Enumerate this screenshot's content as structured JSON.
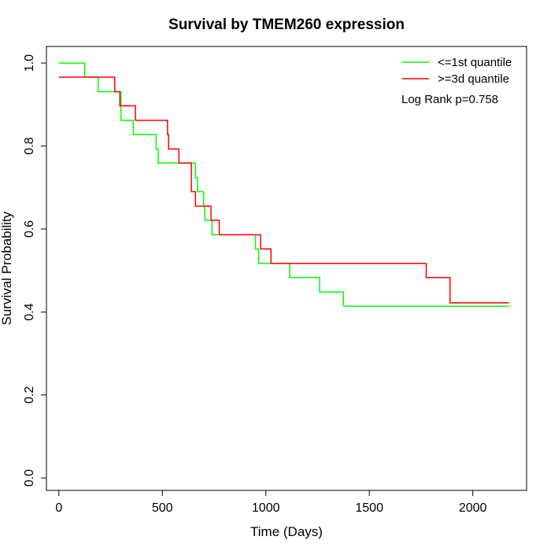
{
  "chart_data": {
    "type": "line",
    "title": "Survival by TMEM260 expression",
    "xlabel": "Time (Days)",
    "ylabel": "Survival Probability",
    "xlim": [
      -60,
      2260
    ],
    "ylim": [
      -0.03,
      1.04
    ],
    "x_ticks": [
      0,
      500,
      1000,
      1500,
      2000
    ],
    "y_ticks": [
      0.0,
      0.2,
      0.4,
      0.6,
      0.8,
      1.0
    ],
    "x_tick_labels": [
      "0",
      "500",
      "1000",
      "1500",
      "2000"
    ],
    "y_tick_labels": [
      "0.0",
      "0.2",
      "0.4",
      "0.6",
      "0.8",
      "1.0"
    ],
    "grid": false,
    "legend_position": "top-right",
    "annotation": "Log Rank p=0.758",
    "series": [
      {
        "name": "<=1st quantile",
        "color": "#00ff00",
        "steps": [
          [
            0,
            1.0
          ],
          [
            125,
            0.966
          ],
          [
            190,
            0.931
          ],
          [
            300,
            0.862
          ],
          [
            360,
            0.828
          ],
          [
            470,
            0.793
          ],
          [
            480,
            0.759
          ],
          [
            660,
            0.724
          ],
          [
            670,
            0.69
          ],
          [
            700,
            0.655
          ],
          [
            705,
            0.621
          ],
          [
            740,
            0.586
          ],
          [
            950,
            0.552
          ],
          [
            965,
            0.517
          ],
          [
            1115,
            0.483
          ],
          [
            1260,
            0.448
          ],
          [
            1375,
            0.414
          ],
          [
            2175,
            0.414
          ]
        ]
      },
      {
        "name": ">=3d quantile",
        "color": "#ff0000",
        "steps": [
          [
            0,
            0.966
          ],
          [
            270,
            0.931
          ],
          [
            295,
            0.897
          ],
          [
            370,
            0.862
          ],
          [
            525,
            0.828
          ],
          [
            530,
            0.793
          ],
          [
            580,
            0.759
          ],
          [
            640,
            0.69
          ],
          [
            660,
            0.655
          ],
          [
            735,
            0.621
          ],
          [
            775,
            0.586
          ],
          [
            975,
            0.552
          ],
          [
            1025,
            0.517
          ],
          [
            1775,
            0.483
          ],
          [
            1890,
            0.422
          ],
          [
            2175,
            0.422
          ]
        ]
      }
    ]
  }
}
